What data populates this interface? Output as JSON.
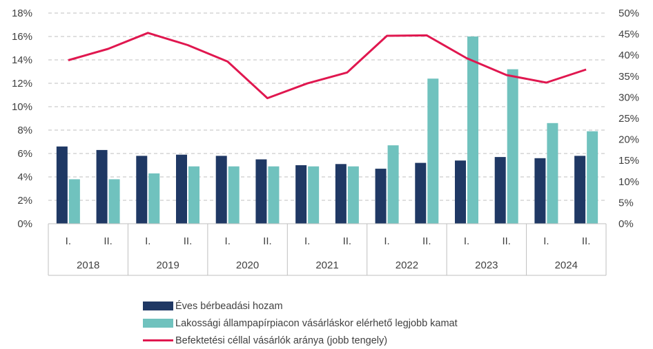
{
  "chart_data": {
    "type": "bar",
    "categories": [
      "I.",
      "II.",
      "I.",
      "II.",
      "I.",
      "II.",
      "I.",
      "II.",
      "I.",
      "II.",
      "I.",
      "II.",
      "I.",
      "II."
    ],
    "years": [
      "2018",
      "2019",
      "2020",
      "2021",
      "2022",
      "2023",
      "2024"
    ],
    "series": [
      {
        "name": "Éves bérbeadási hozam",
        "type": "bar",
        "axis": "left",
        "color": "#1f3864",
        "values": [
          6.6,
          6.3,
          5.8,
          5.9,
          5.8,
          5.5,
          5.0,
          5.1,
          4.7,
          5.2,
          5.4,
          5.7,
          5.6,
          5.8
        ]
      },
      {
        "name": "Lakossági állampapírpiacon vásárláskor elérhető legjobb kamat",
        "type": "bar",
        "axis": "left",
        "color": "#70c2be",
        "values": [
          3.8,
          3.8,
          4.3,
          4.9,
          4.9,
          4.9,
          4.9,
          4.9,
          6.7,
          12.4,
          16.0,
          13.2,
          8.6,
          7.9
        ]
      },
      {
        "name": "Befektetési céllal vásárlók aránya (jobb tengely)",
        "type": "line",
        "axis": "right",
        "color": "#e0174f",
        "values": [
          38.8,
          41.5,
          45.3,
          42.4,
          38.5,
          29.8,
          33.3,
          35.9,
          44.6,
          44.7,
          39.3,
          35.3,
          33.5,
          36.6
        ]
      }
    ],
    "y_left": {
      "ylim": [
        0,
        18
      ],
      "ticks": [
        0,
        2,
        4,
        6,
        8,
        10,
        12,
        14,
        16,
        18
      ],
      "unit": "%"
    },
    "y_right": {
      "ylim": [
        0,
        50
      ],
      "ticks": [
        0,
        5,
        10,
        15,
        20,
        25,
        30,
        35,
        40,
        45,
        50
      ],
      "unit": "%"
    },
    "grid": "horizontal-dashed",
    "legend_placement": "bottom"
  }
}
